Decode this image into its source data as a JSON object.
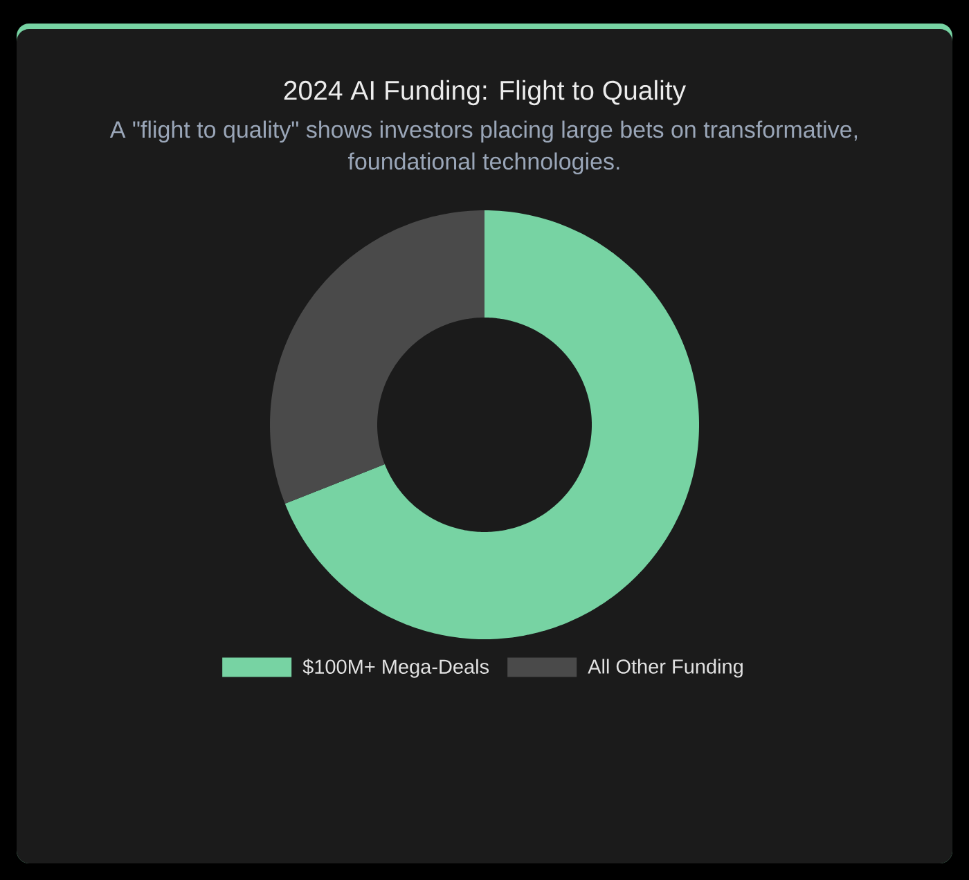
{
  "chart_data": {
    "type": "donut",
    "title": "2024 AI Funding: Flight to Quality",
    "subtitle": "A \"flight to quality\" shows investors placing large bets on transformative, foundational technologies.",
    "categories": [
      "$100M+ Mega-Deals",
      "All Other Funding"
    ],
    "values": [
      69,
      31
    ],
    "colors": [
      "#77d3a3",
      "#4a4a4a"
    ],
    "legend": "bottom"
  }
}
